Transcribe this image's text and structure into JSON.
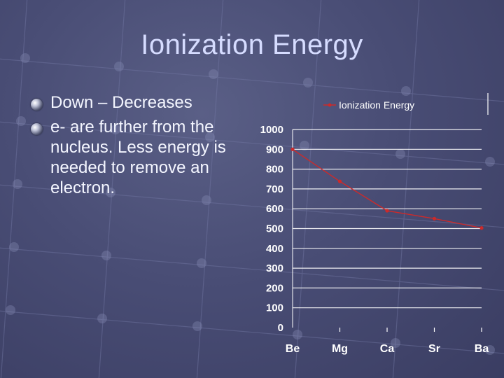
{
  "slide": {
    "title": "Ionization Energy",
    "bullets": [
      "Down – Decreases",
      "e- are further from the nucleus.  Less energy is needed to remove an electron."
    ]
  },
  "chart_data": {
    "type": "line",
    "title": "",
    "xlabel": "",
    "ylabel": "",
    "categories": [
      "Be",
      "Mg",
      "Ca",
      "Sr",
      "Ba"
    ],
    "series": [
      {
        "name": "Ionization Energy",
        "values": [
          900,
          738,
          590,
          550,
          503
        ]
      }
    ],
    "ylim": [
      0,
      1000
    ],
    "yticks": [
      0,
      100,
      200,
      300,
      400,
      500,
      600,
      700,
      800,
      900,
      1000
    ],
    "grid": true,
    "legend": "top",
    "colors": {
      "series": "#cc2a2a",
      "gridline": "#ffffff",
      "axis": "#ffffff",
      "tick_label": "#ffffff"
    }
  }
}
